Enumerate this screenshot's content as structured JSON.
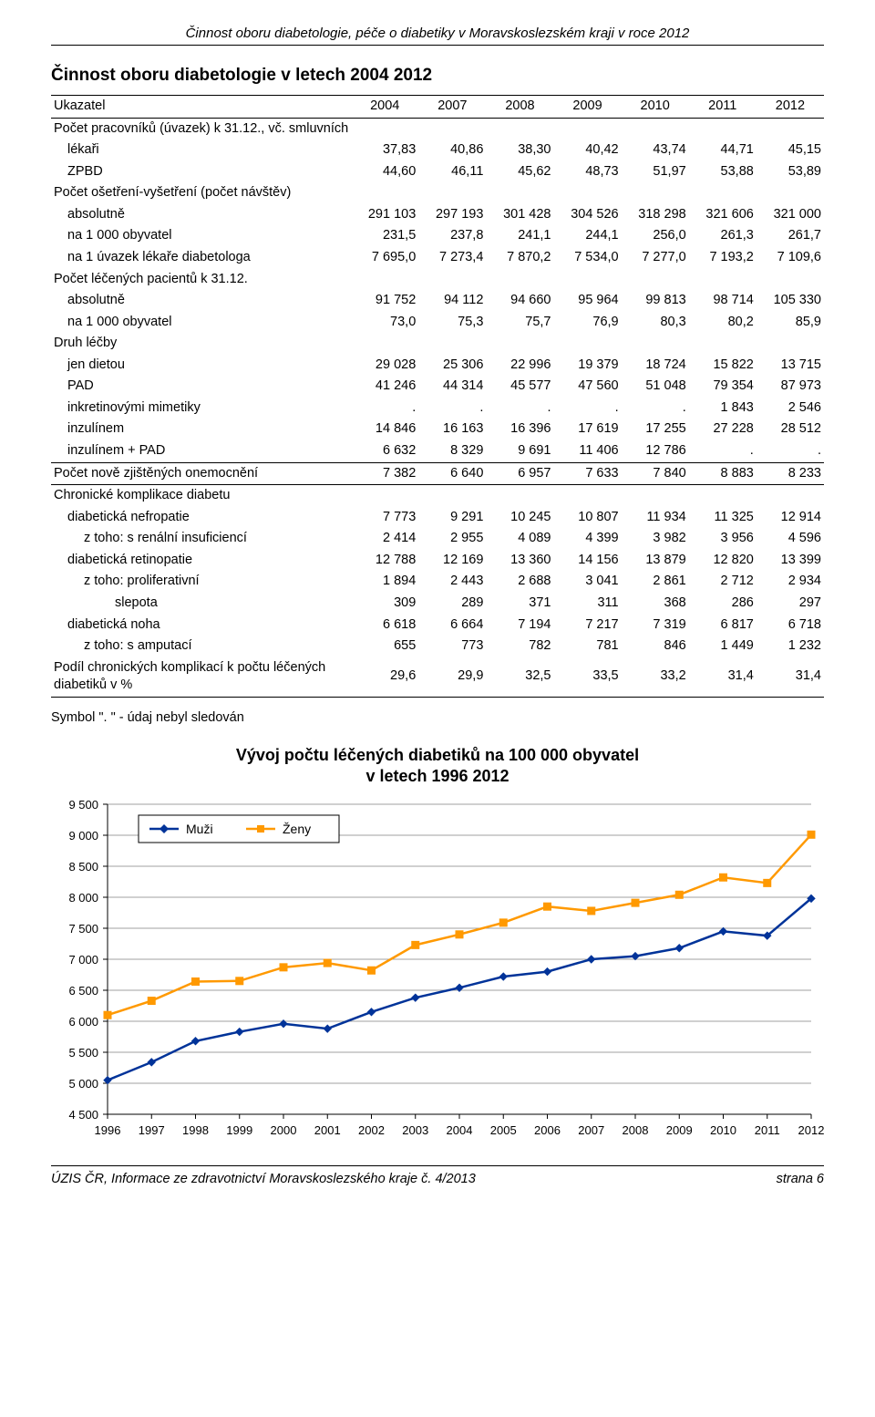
{
  "doc_header": "Činnost oboru diabetologie, péče o diabetiky v Moravskoslezském kraji v roce 2012",
  "table_title": "Činnost oboru diabetologie v letech 2004 2012",
  "footnote": "Symbol \". \" - údaj nebyl sledován",
  "footer_left": "ÚZIS ČR, Informace ze zdravotnictví Moravskoslezského kraje č. 4/2013",
  "footer_right": "strana 6",
  "table": {
    "header_label": "Ukazatel",
    "years": [
      "2004",
      "2007",
      "2008",
      "2009",
      "2010",
      "2011",
      "2012"
    ],
    "rows": [
      {
        "label": "Počet pracovníků (úvazek) k 31.12., vč. smluvních",
        "vals": [
          "",
          "",
          "",
          "",
          "",
          "",
          ""
        ],
        "indent": 0,
        "group_head": true
      },
      {
        "label": "lékaři",
        "vals": [
          "37,83",
          "40,86",
          "38,30",
          "40,42",
          "43,74",
          "44,71",
          "45,15"
        ],
        "indent": 1
      },
      {
        "label": "ZPBD",
        "vals": [
          "44,60",
          "46,11",
          "45,62",
          "48,73",
          "51,97",
          "53,88",
          "53,89"
        ],
        "indent": 1
      },
      {
        "label": "Počet ošetření-vyšetření (počet návštěv)",
        "vals": [
          "",
          "",
          "",
          "",
          "",
          "",
          ""
        ],
        "indent": 0,
        "group_head": true
      },
      {
        "label": "absolutně",
        "vals": [
          "291 103",
          "297 193",
          "301 428",
          "304 526",
          "318 298",
          "321 606",
          "321 000"
        ],
        "indent": 1
      },
      {
        "label": "na 1 000 obyvatel",
        "vals": [
          "231,5",
          "237,8",
          "241,1",
          "244,1",
          "256,0",
          "261,3",
          "261,7"
        ],
        "indent": 1
      },
      {
        "label": "na 1 úvazek lékaře diabetologa",
        "vals": [
          "7 695,0",
          "7 273,4",
          "7 870,2",
          "7 534,0",
          "7 277,0",
          "7 193,2",
          "7 109,6"
        ],
        "indent": 1
      },
      {
        "label": "Počet léčených pacientů k 31.12.",
        "vals": [
          "",
          "",
          "",
          "",
          "",
          "",
          ""
        ],
        "indent": 0,
        "group_head": true
      },
      {
        "label": "absolutně",
        "vals": [
          "91 752",
          "94 112",
          "94 660",
          "95 964",
          "99 813",
          "98 714",
          "105 330"
        ],
        "indent": 1
      },
      {
        "label": "na 1 000 obyvatel",
        "vals": [
          "73,0",
          "75,3",
          "75,7",
          "76,9",
          "80,3",
          "80,2",
          "85,9"
        ],
        "indent": 1
      },
      {
        "label": "Druh léčby",
        "vals": [
          "",
          "",
          "",
          "",
          "",
          "",
          ""
        ],
        "indent": 0,
        "group_head": true
      },
      {
        "label": "jen dietou",
        "vals": [
          "29 028",
          "25 306",
          "22 996",
          "19 379",
          "18 724",
          "15 822",
          "13 715"
        ],
        "indent": 1
      },
      {
        "label": "PAD",
        "vals": [
          "41 246",
          "44 314",
          "45 577",
          "47 560",
          "51 048",
          "79 354",
          "87 973"
        ],
        "indent": 1
      },
      {
        "label": "inkretinovými mimetiky",
        "vals": [
          ". ",
          " . ",
          " . ",
          " . ",
          " . ",
          "1 843",
          "2 546"
        ],
        "indent": 1
      },
      {
        "label": "inzulínem",
        "vals": [
          "14 846",
          "16 163",
          "16 396",
          "17 619",
          "17 255",
          "27 228",
          "28 512"
        ],
        "indent": 1
      },
      {
        "label": "inzulínem + PAD",
        "vals": [
          "6 632",
          "8 329",
          "9 691",
          "11 406",
          "12 786",
          ". ",
          " . "
        ],
        "indent": 1
      },
      {
        "label": "Počet nově zjištěných onemocnění",
        "vals": [
          "7 382",
          "6 640",
          "6 957",
          "7 633",
          "7 840",
          "8 883",
          "8 233"
        ],
        "indent": 0,
        "sep_top": true,
        "sep_bottom": true
      },
      {
        "label": "Chronické komplikace diabetu",
        "vals": [
          "",
          "",
          "",
          "",
          "",
          "",
          ""
        ],
        "indent": 0,
        "group_head": true
      },
      {
        "label": "diabetická nefropatie",
        "vals": [
          "7 773",
          "9 291",
          "10 245",
          "10 807",
          "11 934",
          "11 325",
          "12 914"
        ],
        "indent": 1
      },
      {
        "label": "z toho:  s renální insuficiencí",
        "vals": [
          "2 414",
          "2 955",
          "4 089",
          "4 399",
          "3 982",
          "3 956",
          "4 596"
        ],
        "indent": 2
      },
      {
        "label": "diabetická retinopatie",
        "vals": [
          "12 788",
          "12 169",
          "13 360",
          "14 156",
          "13 879",
          "12 820",
          "13 399"
        ],
        "indent": 1
      },
      {
        "label": "z toho:  proliferativní",
        "vals": [
          "1 894",
          "2 443",
          "2 688",
          "3 041",
          "2 861",
          "2 712",
          "2 934"
        ],
        "indent": 2
      },
      {
        "label": "slepota",
        "vals": [
          "309",
          "289",
          "371",
          "311",
          "368",
          "286",
          "297"
        ],
        "indent": 3
      },
      {
        "label": "diabetická noha",
        "vals": [
          "6 618",
          "6 664",
          "7 194",
          "7 217",
          "7 319",
          "6 817",
          "6 718"
        ],
        "indent": 1
      },
      {
        "label": "z toho:  s amputací",
        "vals": [
          "655",
          "773",
          "782",
          "781",
          "846",
          "1 449",
          "1 232"
        ],
        "indent": 2
      },
      {
        "label": "Podíl chronických komplikací k počtu léčených diabetiků v %",
        "vals": [
          "29,6",
          "29,9",
          "32,5",
          "33,5",
          "33,2",
          "31,4",
          "31,4"
        ],
        "indent": 0,
        "sep_bottom": true,
        "wrap": true
      }
    ]
  },
  "chart": {
    "title_line1": "Vývoj počtu léčených diabetiků na 100 000 obyvatel",
    "title_line2": "v letech 1996 2012",
    "type": "line",
    "legend": [
      {
        "label": "Muži",
        "color": "#003399",
        "marker": "diamond"
      },
      {
        "label": "Ženy",
        "color": "#ff9900",
        "marker": "square"
      }
    ],
    "x_labels": [
      "1996",
      "1997",
      "1998",
      "1999",
      "2000",
      "2001",
      "2002",
      "2003",
      "2004",
      "2005",
      "2006",
      "2007",
      "2008",
      "2009",
      "2010",
      "2011",
      "2012"
    ],
    "ylim": [
      4500,
      9500
    ],
    "ytick_step": 500,
    "yticks": [
      "4 500",
      "5 000",
      "5 500",
      "6 000",
      "6 500",
      "7 000",
      "7 500",
      "8 000",
      "8 500",
      "9 000",
      "9 500"
    ],
    "series": {
      "men": [
        5050,
        5340,
        5680,
        5830,
        5960,
        5880,
        6150,
        6380,
        6540,
        6720,
        6800,
        7000,
        7050,
        7180,
        7450,
        7380,
        7980
      ],
      "women": [
        6100,
        6330,
        6640,
        6650,
        6870,
        6940,
        6820,
        7230,
        7400,
        7590,
        7850,
        7780,
        7910,
        8040,
        8320,
        8230,
        9010
      ]
    },
    "colors": {
      "background": "#ffffff",
      "grid": "#808080",
      "axis": "#000000",
      "tick": "#000000",
      "text": "#000000",
      "men": "#003399",
      "women": "#ff9900",
      "legend_border": "#000000",
      "legend_bg": "#ffffff"
    },
    "line_width": 2.5,
    "marker_size": 8,
    "label_fontsize": 13,
    "legend_fontsize": 14
  }
}
